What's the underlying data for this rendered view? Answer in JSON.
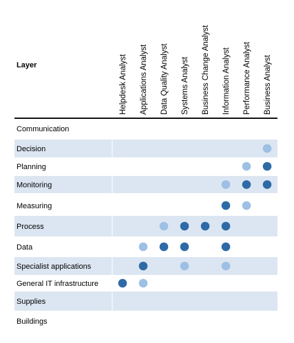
{
  "header": {
    "layer_label": "Layer"
  },
  "roles": [
    "Helpdesk Analyst",
    "Applications Analyst",
    "Data Quality Analyst",
    "Systems Analyst",
    "Business Change Analyst",
    "Information Analyst",
    "Performance Analyst",
    "Business Analyst"
  ],
  "rows": [
    {
      "label": "Communication",
      "shaded": false,
      "levels": [
        0,
        0,
        0,
        0,
        0,
        0,
        0,
        0
      ]
    },
    {
      "label": "Decision",
      "shaded": true,
      "levels": [
        0,
        0,
        0,
        0,
        0,
        0,
        0,
        1
      ]
    },
    {
      "label": "Planning",
      "shaded": false,
      "levels": [
        0,
        0,
        0,
        0,
        0,
        0,
        1,
        2
      ]
    },
    {
      "label": "Monitoring",
      "shaded": true,
      "levels": [
        0,
        0,
        0,
        0,
        0,
        1,
        2,
        2
      ]
    },
    {
      "label": "Measuring",
      "shaded": false,
      "levels": [
        0,
        0,
        0,
        0,
        0,
        2,
        1,
        0
      ]
    },
    {
      "label": "Process",
      "shaded": true,
      "levels": [
        0,
        0,
        1,
        2,
        2,
        2,
        0,
        0
      ]
    },
    {
      "label": "Data",
      "shaded": false,
      "levels": [
        0,
        1,
        2,
        2,
        0,
        2,
        0,
        0
      ]
    },
    {
      "label": "Specialist applications",
      "shaded": true,
      "levels": [
        0,
        2,
        0,
        1,
        0,
        1,
        0,
        0
      ]
    },
    {
      "label": "General IT infrastructure",
      "shaded": false,
      "levels": [
        2,
        1,
        0,
        0,
        0,
        0,
        0,
        0
      ]
    },
    {
      "label": "Supplies",
      "shaded": true,
      "levels": [
        0,
        0,
        0,
        0,
        0,
        0,
        0,
        0
      ]
    },
    {
      "label": "Buildings",
      "shaded": false,
      "levels": [
        0,
        0,
        0,
        0,
        0,
        0,
        0,
        0
      ]
    }
  ],
  "colors": {
    "band": "#dce6f2",
    "dot_primary": "#2e6aa6",
    "dot_secondary": "#9dc0e4"
  }
}
